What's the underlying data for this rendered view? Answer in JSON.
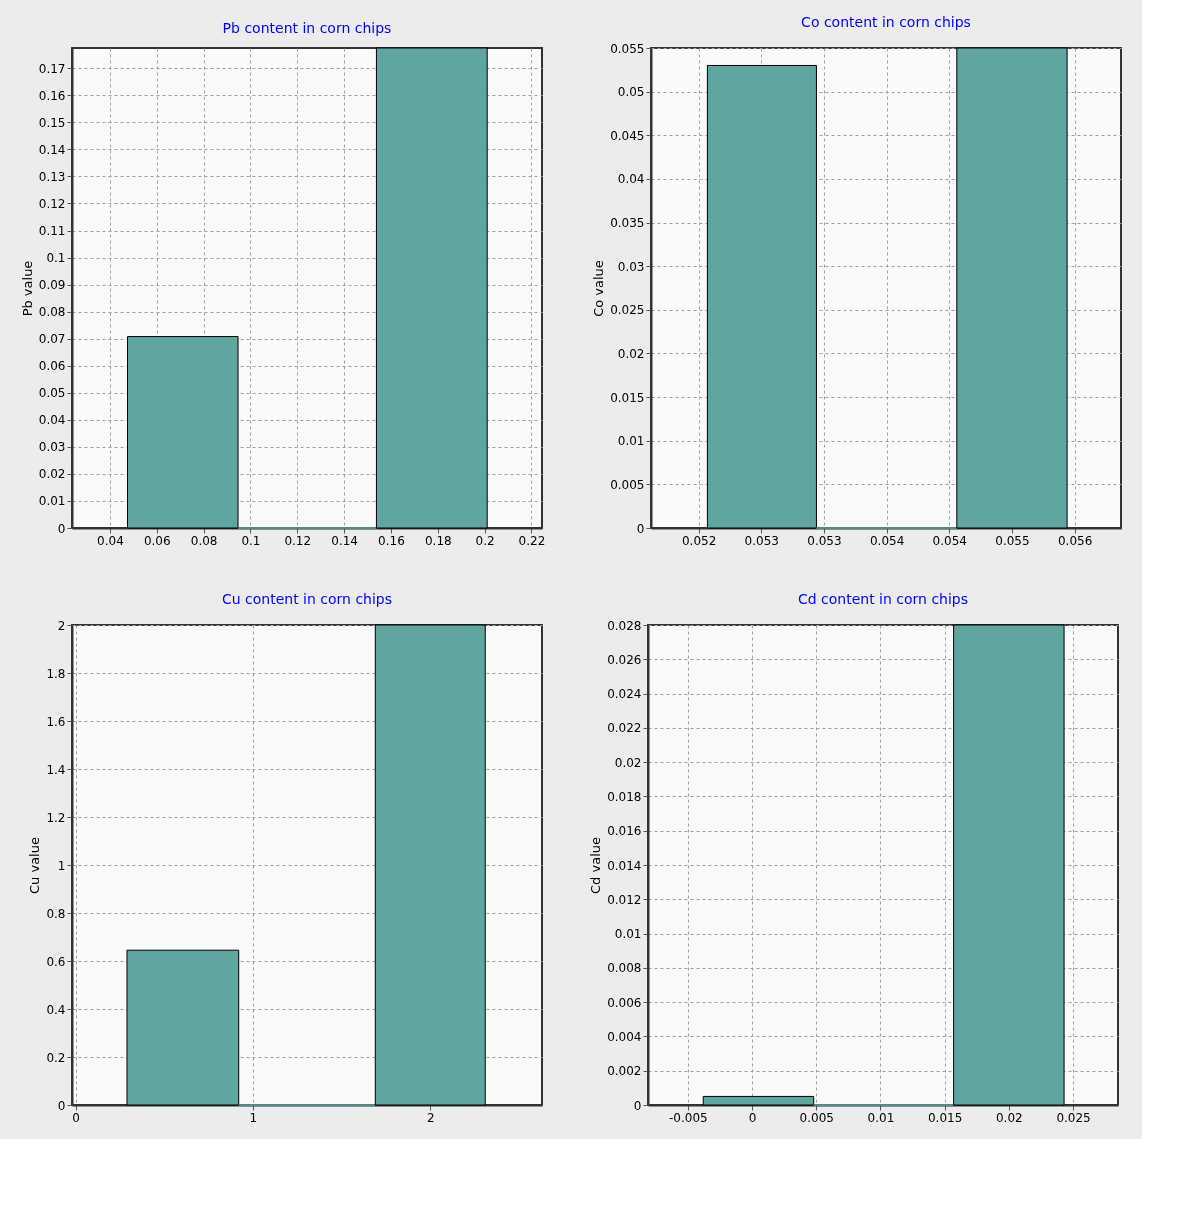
{
  "chart_data": [
    {
      "type": "histogram",
      "title": "Pb content in corn chips",
      "ylabel": "Pb value",
      "bins": [
        0.0475,
        0.0947,
        0.1538,
        0.2011
      ],
      "values": [
        0.0708,
        0,
        0.1775
      ],
      "color": "#5fa6a0",
      "xlim": [
        0.0238,
        0.2245
      ],
      "xticks": [
        0.04,
        0.06,
        0.08,
        0.1,
        0.12,
        0.14,
        0.16,
        0.18,
        0.2,
        0.22
      ],
      "ylim": [
        0,
        0.1775
      ],
      "yticks": [
        0,
        0.01,
        0.02,
        0.03,
        0.04,
        0.05,
        0.06,
        0.07,
        0.08,
        0.09,
        0.1,
        0.11,
        0.12,
        0.13,
        0.14,
        0.15,
        0.16,
        0.17
      ],
      "grid": true
    },
    {
      "type": "histogram",
      "title": "Co content in corn chips",
      "ylabel": "Co value",
      "bins": [
        0.05257,
        0.05344,
        0.05456,
        0.05544
      ],
      "values": [
        0.053,
        0,
        0.055
      ],
      "color": "#5fa6a0",
      "xlim": [
        0.05212,
        0.05587
      ],
      "xticks": [
        {
          "value": 0.0525,
          "label": "0.052"
        },
        0.053,
        {
          "value": 0.0535,
          "label": "0.053"
        },
        0.054,
        {
          "value": 0.0545,
          "label": "0.054"
        },
        0.055,
        {
          "value": 0.0555,
          "label": "0.056"
        }
      ],
      "ylim": [
        0,
        0.055
      ],
      "yticks": [
        0,
        0.005,
        0.01,
        0.015,
        0.02,
        0.025,
        0.03,
        0.035,
        0.04,
        0.045,
        0.05,
        0.055
      ],
      "grid": true
    },
    {
      "type": "histogram",
      "title": "Cu content in corn chips",
      "ylabel": "Cu value",
      "bins": [
        0.29,
        0.92,
        1.69,
        2.31
      ],
      "values": [
        0.645,
        0,
        2
      ],
      "color": "#5fa6a0",
      "xlim": [
        -0.02,
        2.63
      ],
      "xticks": [
        0,
        1,
        2
      ],
      "ylim": [
        0,
        2
      ],
      "yticks": [
        0,
        0.2,
        0.4,
        0.6,
        0.8,
        1,
        1.2,
        1.4,
        1.6,
        1.8,
        2
      ],
      "grid": true
    },
    {
      "type": "histogram",
      "title": "Cd content in corn chips",
      "ylabel": "Cd value",
      "bins": [
        -0.0038,
        0.0048,
        0.0157,
        0.0243
      ],
      "values": [
        0.0005,
        0,
        0.028
      ],
      "color": "#5fa6a0",
      "xlim": [
        -0.0081,
        0.0285
      ],
      "xticks": [
        -0.005,
        0,
        0.005,
        0.01,
        0.015,
        0.02,
        0.025
      ],
      "ylim": [
        0,
        0.028
      ],
      "yticks": [
        0,
        0.002,
        0.004,
        0.006,
        0.008,
        0.01,
        0.012,
        0.014,
        0.016,
        0.018,
        0.02,
        0.022,
        0.024,
        0.026,
        0.028
      ],
      "grid": true
    }
  ]
}
